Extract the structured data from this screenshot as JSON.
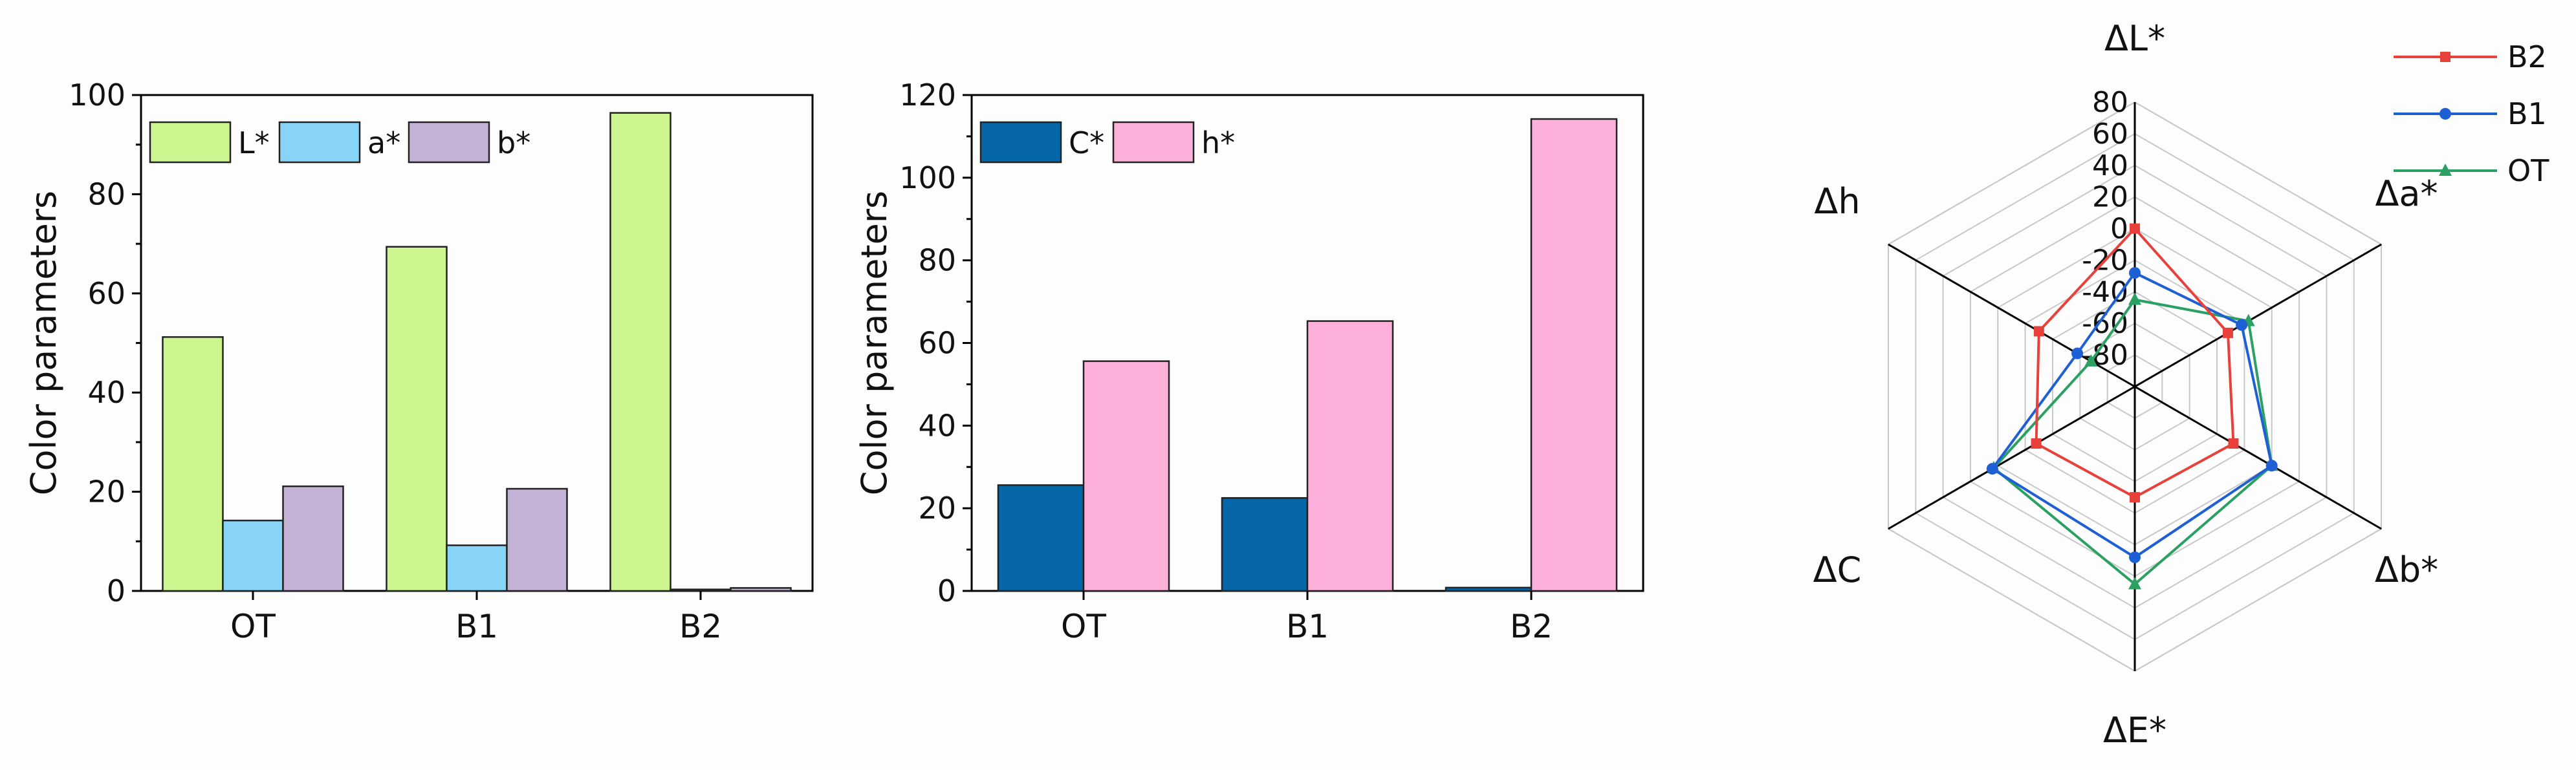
{
  "chart_data": [
    {
      "type": "bar",
      "categories": [
        "OT",
        "B1",
        "B2"
      ],
      "ylabel": "Color parameters",
      "xlabel": "",
      "ylim": [
        0,
        100
      ],
      "yticks": [
        "0",
        "20",
        "40",
        "60",
        "80",
        "100"
      ],
      "legend_placement": "top-left",
      "series": [
        {
          "name": "L*",
          "values": [
            51.2,
            69.4,
            96.4
          ],
          "color": "#ccf590"
        },
        {
          "name": "a*",
          "values": [
            14.2,
            9.2,
            0.3
          ],
          "color": "#88d4f7"
        },
        {
          "name": "b*",
          "values": [
            21.1,
            20.6,
            0.6
          ],
          "color": "#c4b2d6"
        }
      ]
    },
    {
      "type": "bar",
      "categories": [
        "OT",
        "B1",
        "B2"
      ],
      "ylabel": "Color parameters",
      "xlabel": "",
      "ylim": [
        0,
        120
      ],
      "yticks": [
        "0",
        "20",
        "40",
        "60",
        "80",
        "100",
        "120"
      ],
      "legend_placement": "top-left",
      "series": [
        {
          "name": "C*",
          "values": [
            25.6,
            22.5,
            0.8
          ],
          "color": "#0566a8"
        },
        {
          "name": "h*",
          "values": [
            55.6,
            65.3,
            114.2
          ],
          "color": "#fdb0da"
        }
      ]
    },
    {
      "type": "radar",
      "axes": [
        "ΔL*",
        "Δa*",
        "Δb*",
        "ΔE*",
        "ΔC",
        "Δh"
      ],
      "rlim": [
        -100,
        80
      ],
      "rticks": [
        "80",
        "60",
        "40",
        "20",
        "0",
        "-20",
        "-40",
        "-60",
        "-80"
      ],
      "legend_placement": "top-right",
      "series": [
        {
          "name": "B2",
          "color": "#e8413c",
          "marker": "square",
          "values": [
            0,
            -32,
            -28,
            -30,
            -28,
            -30
          ]
        },
        {
          "name": "B1",
          "color": "#1f5fd6",
          "marker": "circle",
          "values": [
            -28,
            -22,
            0,
            8,
            4,
            -58
          ]
        },
        {
          "name": "OT",
          "color": "#2aa062",
          "marker": "triangle",
          "values": [
            -45,
            -17,
            0,
            25,
            3,
            -68
          ]
        }
      ]
    }
  ]
}
